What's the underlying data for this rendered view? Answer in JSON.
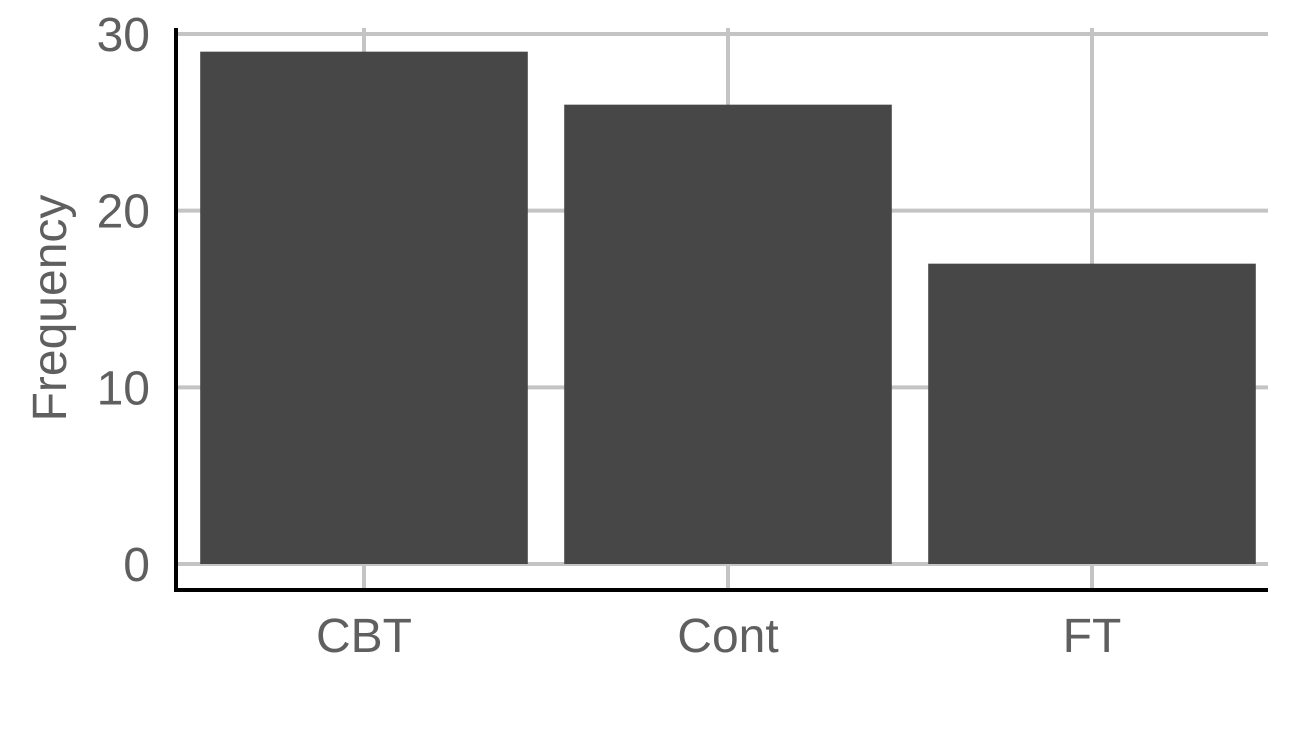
{
  "chart_data": {
    "type": "bar",
    "title": "",
    "xlabel": "",
    "ylabel": "Frequency",
    "categories": [
      "CBT",
      "Cont",
      "FT"
    ],
    "values": [
      29,
      26,
      17
    ],
    "ylim": [
      0,
      30
    ],
    "yticks": [
      0,
      10,
      20,
      30
    ],
    "grid": true,
    "colors": {
      "bar": "#474747",
      "grid": "#c4c4c4",
      "axis": "#000000",
      "text": "#5f5f5f"
    }
  }
}
